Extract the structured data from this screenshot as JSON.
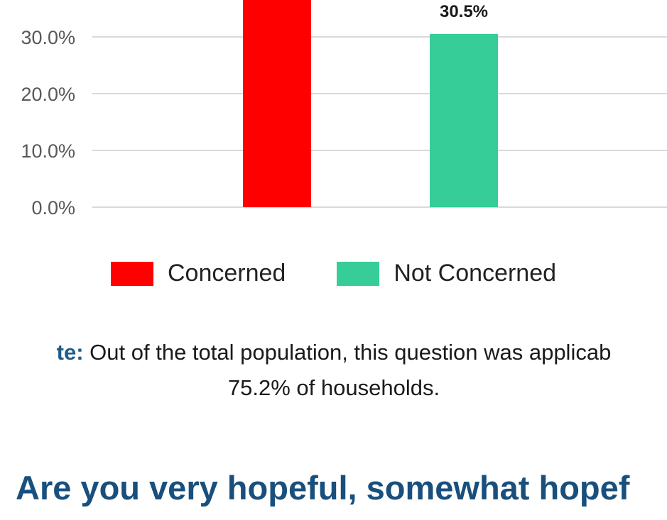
{
  "chart_data": {
    "type": "bar",
    "categories": [
      "Concerned",
      "Not Concerned"
    ],
    "values": [
      null,
      30.5
    ],
    "value_labels": [
      "",
      "30.5%"
    ],
    "series_colors": [
      "#ff0000",
      "#36cd99"
    ],
    "y_ticks": [
      "0.0%",
      "10.0%",
      "20.0%",
      "30.0%"
    ],
    "ylim": [
      0,
      30
    ],
    "grid": true,
    "legend_position": "bottom",
    "legend": [
      {
        "label": "Concerned",
        "color": "#ff0000"
      },
      {
        "label": "Not Concerned",
        "color": "#36cd99"
      }
    ]
  },
  "note": {
    "label": "te:",
    "line1": "Out of the total population, this question was applicab",
    "line2": "75.2% of households."
  },
  "next_question": "Are you very hopeful, somewhat hopef",
  "colors": {
    "heading": "#184f7d",
    "note_label": "#1d5b8a",
    "gridline": "#d9d9d9"
  }
}
